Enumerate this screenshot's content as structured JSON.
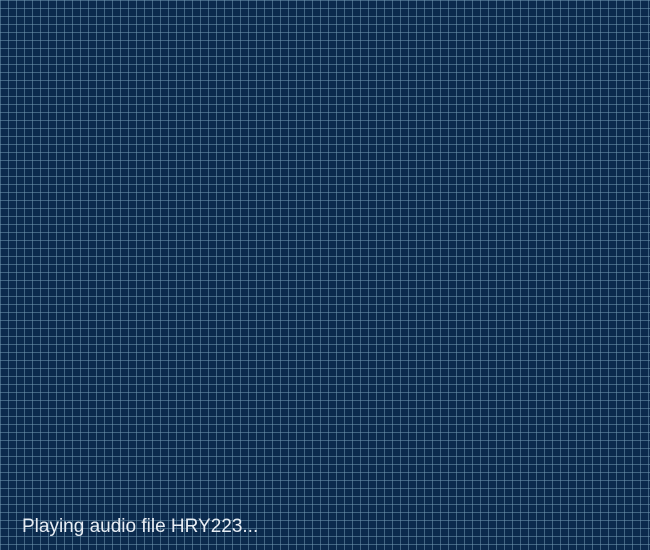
{
  "status": {
    "message": "Playing audio file HRY223..."
  },
  "colors": {
    "background": "#0b2a4d",
    "grid_line": "#6e96af",
    "text": "#e8eef4"
  }
}
